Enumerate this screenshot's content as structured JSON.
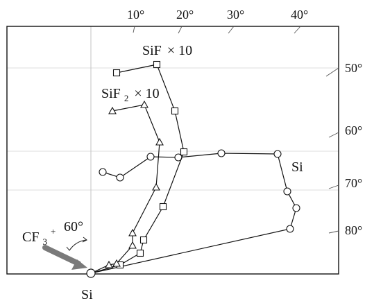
{
  "top_tick_labels": [
    "10°",
    "20°",
    "30°",
    "40°"
  ],
  "right_tick_labels": [
    "50°",
    "60°",
    "70°",
    "80°"
  ],
  "series": {
    "si_label": "Si",
    "sif_label_main": "SiF",
    "sif_label_suffix": "× 10",
    "sif2_label_main": "SiF",
    "sif2_label_sub": "2",
    "sif2_label_suffix": "× 10"
  },
  "annotations": {
    "incident_ion_main": "CF",
    "incident_ion_sub": "3",
    "incident_ion_sup": "+",
    "incident_angle": "60°",
    "target_label": "Si"
  },
  "colors": {
    "frame": "#111111",
    "grid": "#c8c8c8",
    "arrow": "#7a7a7a",
    "series": "#111111",
    "marker_fill": "#ffffff"
  }
}
